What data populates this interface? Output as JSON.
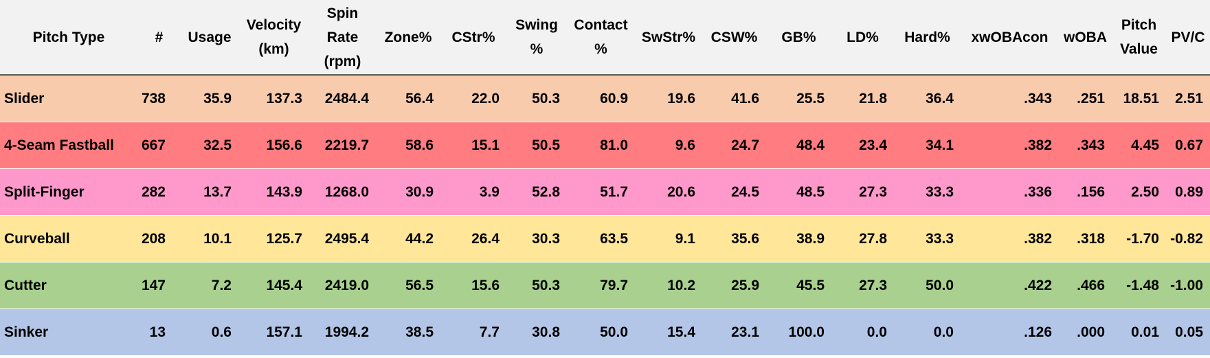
{
  "table": {
    "headers": [
      "Pitch Type",
      "#",
      "Usage",
      "Velocity\n(km)",
      "Spin\nRate\n(rpm)",
      "Zone%",
      "CStr%",
      "Swing\n%",
      "Contact\n%",
      "SwStr%",
      "CSW%",
      "GB%",
      "LD%",
      "Hard%",
      "xwOBAcon",
      "wOBA",
      "Pitch\nValue",
      "PV/C"
    ],
    "rows": [
      {
        "color": "#f8cbad",
        "cells": [
          "Slider",
          "738",
          "35.9",
          "137.3",
          "2484.4",
          "56.4",
          "22.0",
          "50.3",
          "60.9",
          "19.6",
          "41.6",
          "25.5",
          "21.8",
          "36.4",
          ".343",
          ".251",
          "18.51",
          "2.51"
        ]
      },
      {
        "color": "#ff7c80",
        "cells": [
          "4-Seam Fastball",
          "667",
          "32.5",
          "156.6",
          "2219.7",
          "58.6",
          "15.1",
          "50.5",
          "81.0",
          "9.6",
          "24.7",
          "48.4",
          "23.4",
          "34.1",
          ".382",
          ".343",
          "4.45",
          "0.67"
        ]
      },
      {
        "color": "#ff99cc",
        "cells": [
          "Split-Finger",
          "282",
          "13.7",
          "143.9",
          "1268.0",
          "30.9",
          "3.9",
          "52.8",
          "51.7",
          "20.6",
          "24.5",
          "48.5",
          "27.3",
          "33.3",
          ".336",
          ".156",
          "2.50",
          "0.89"
        ]
      },
      {
        "color": "#ffe699",
        "cells": [
          "Curveball",
          "208",
          "10.1",
          "125.7",
          "2495.4",
          "44.2",
          "26.4",
          "30.3",
          "63.5",
          "9.1",
          "35.6",
          "38.9",
          "27.8",
          "33.3",
          ".382",
          ".318",
          "-1.70",
          "-0.82"
        ]
      },
      {
        "color": "#a9d08e",
        "cells": [
          "Cutter",
          "147",
          "7.2",
          "145.4",
          "2419.0",
          "56.5",
          "15.6",
          "50.3",
          "79.7",
          "10.2",
          "25.9",
          "45.5",
          "27.3",
          "50.0",
          ".422",
          ".466",
          "-1.48",
          "-1.00"
        ]
      },
      {
        "color": "#b4c6e7",
        "cells": [
          "Sinker",
          "13",
          "0.6",
          "157.1",
          "1994.2",
          "38.5",
          "7.7",
          "30.8",
          "50.0",
          "15.4",
          "23.1",
          "100.0",
          "0.0",
          "0.0",
          ".126",
          ".000",
          "0.01",
          "0.05"
        ]
      }
    ]
  }
}
